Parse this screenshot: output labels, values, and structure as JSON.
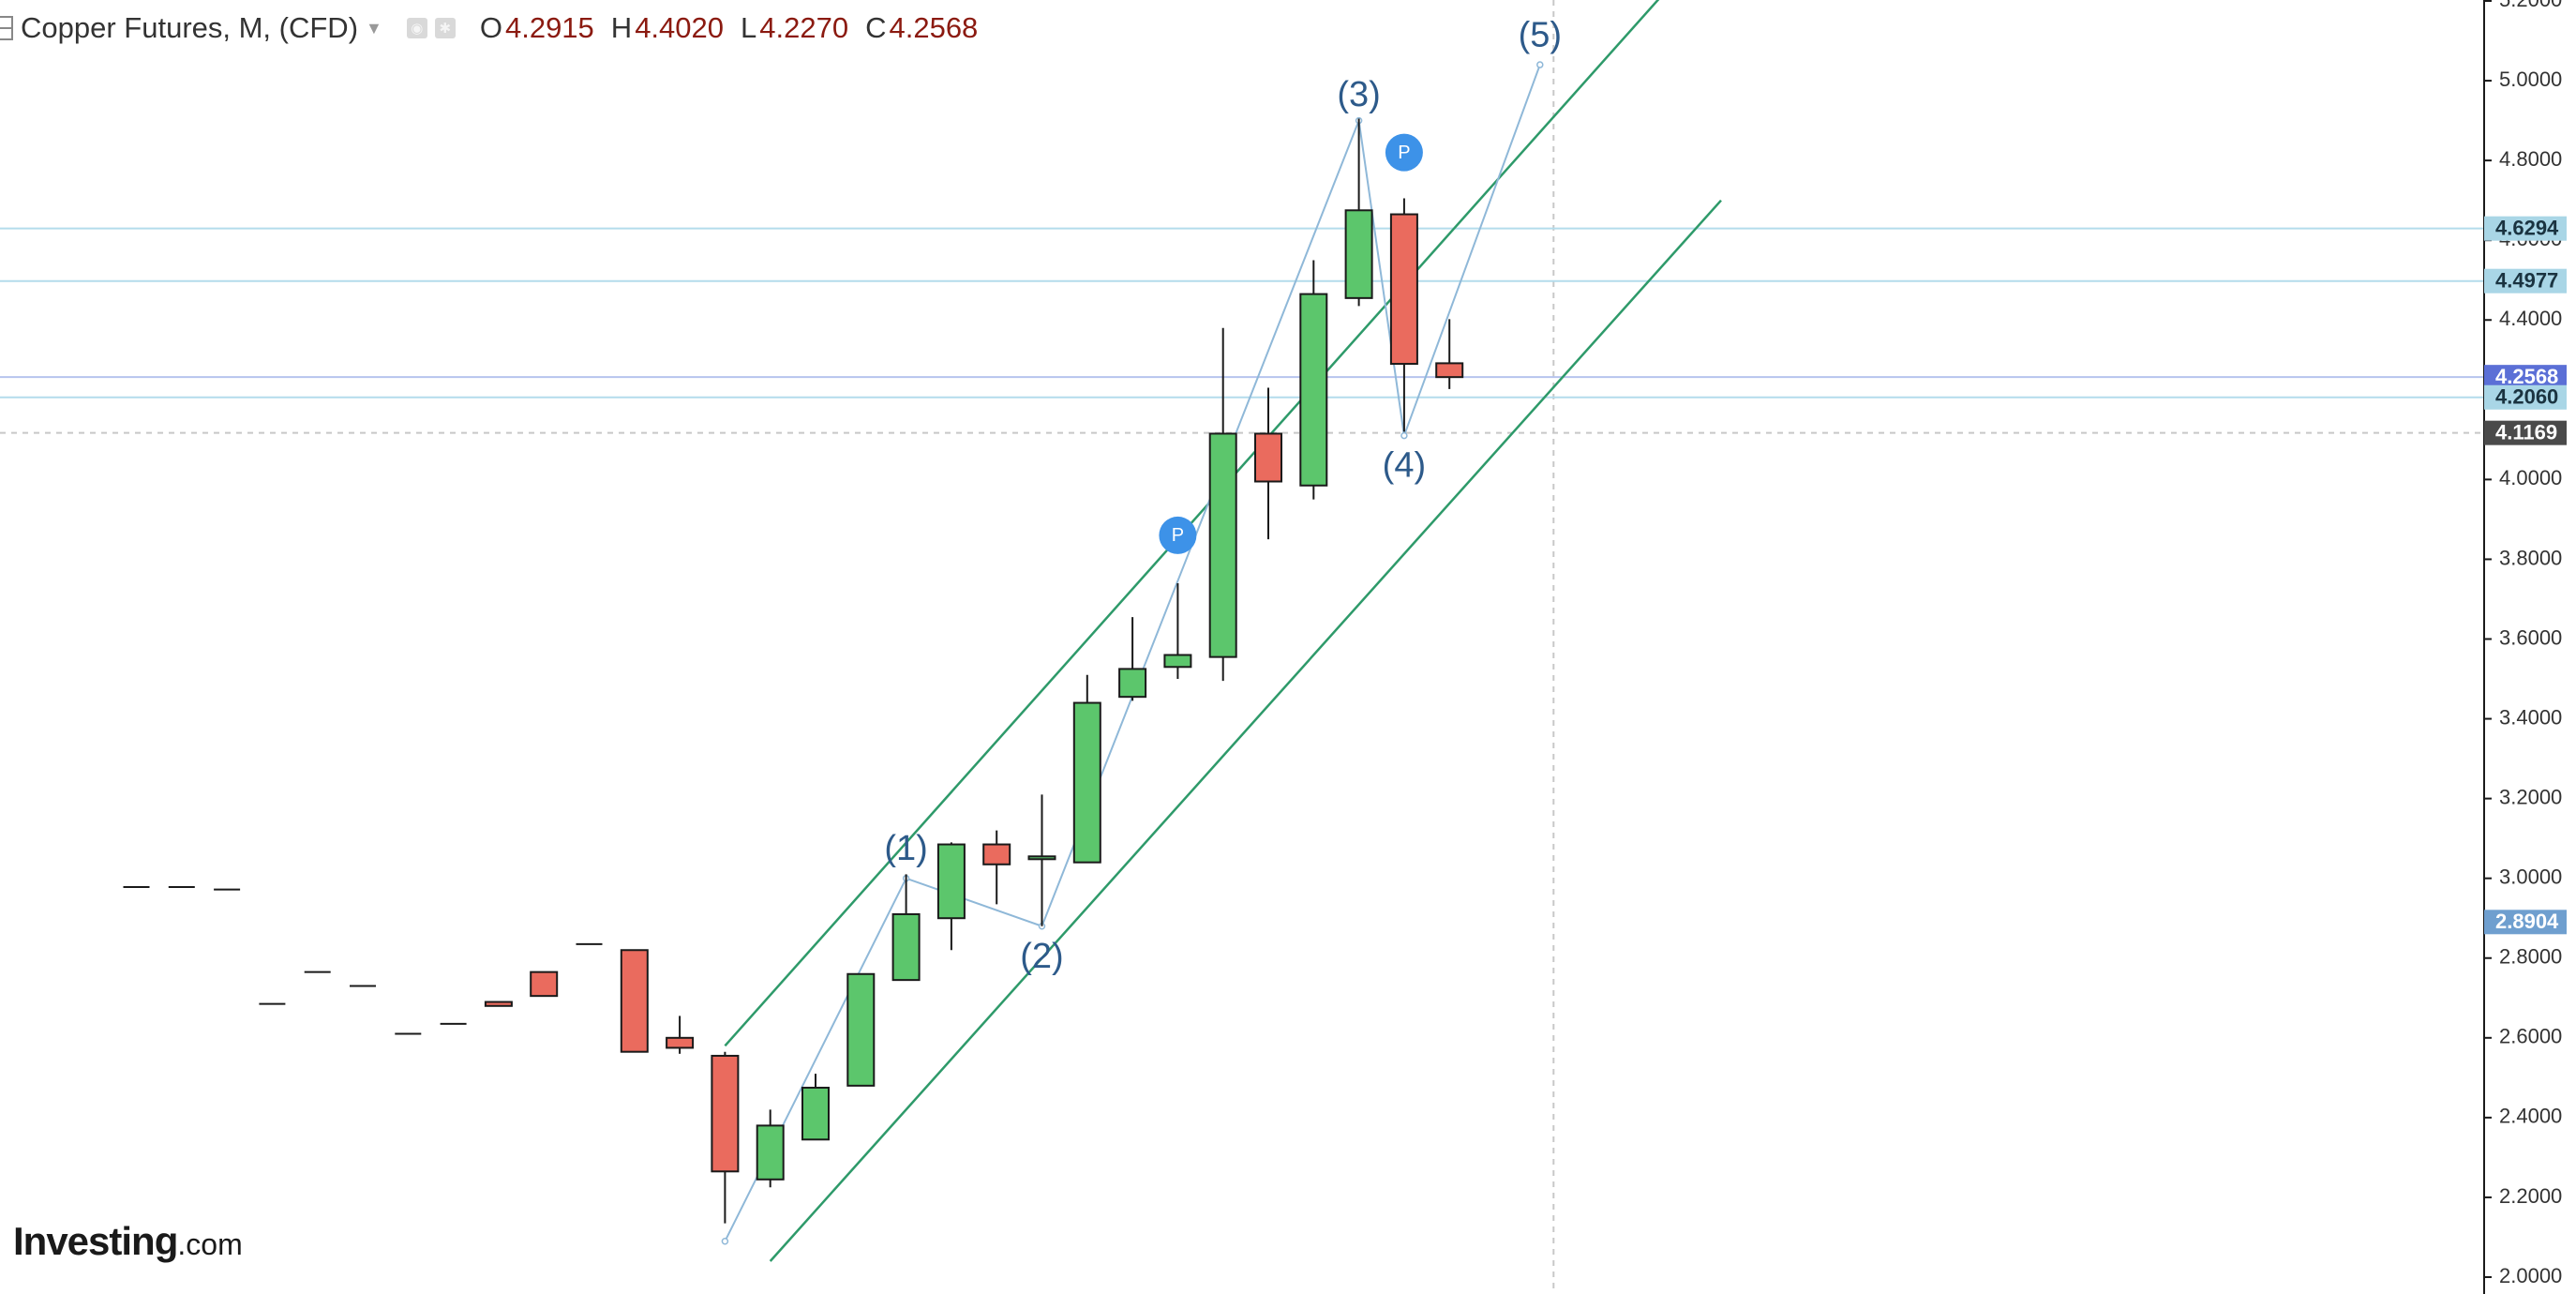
{
  "legend": {
    "symbol": "Copper Futures, M, (CFD)",
    "open_key": "O",
    "open": "4.2915",
    "high_key": "H",
    "high": "4.4020",
    "low_key": "L",
    "low": "4.2270",
    "close_key": "C",
    "close": "4.2568"
  },
  "logo": {
    "main": "Investing",
    "suffix": ".com"
  },
  "colors": {
    "up": "#5cc66c",
    "down": "#ea6b5e",
    "channel": "#2e9a6a",
    "wave_line": "#8fb8d8",
    "hline": "#b4dcec",
    "wave_label": "#2d5a8a",
    "pivot": "#3d92e8"
  },
  "chart_data": {
    "type": "candlestick",
    "title": "Copper Futures, M, (CFD)",
    "timeframe": "M",
    "ylim": [
      2.0,
      5.2
    ],
    "y_ticks": [
      "2.0000",
      "2.2000",
      "2.4000",
      "2.6000",
      "2.8000",
      "3.0000",
      "3.2000",
      "3.4000",
      "3.6000",
      "3.8000",
      "4.0000",
      "4.2000",
      "4.4000",
      "4.6000",
      "4.8000",
      "5.0000",
      "5.2000"
    ],
    "candles": [
      {
        "o": 2.978,
        "h": 2.978,
        "l": 2.978,
        "c": 2.978
      },
      {
        "o": 2.978,
        "h": 2.978,
        "l": 2.978,
        "c": 2.978
      },
      {
        "o": 2.972,
        "h": 2.972,
        "l": 2.972,
        "c": 2.972
      },
      {
        "o": 2.685,
        "h": 2.685,
        "l": 2.685,
        "c": 2.685
      },
      {
        "o": 2.765,
        "h": 2.765,
        "l": 2.765,
        "c": 2.765
      },
      {
        "o": 2.73,
        "h": 2.73,
        "l": 2.73,
        "c": 2.73
      },
      {
        "o": 2.61,
        "h": 2.61,
        "l": 2.61,
        "c": 2.61
      },
      {
        "o": 2.635,
        "h": 2.635,
        "l": 2.635,
        "c": 2.635
      },
      {
        "o": 2.69,
        "h": 2.69,
        "l": 2.68,
        "c": 2.68
      },
      {
        "o": 2.765,
        "h": 2.765,
        "l": 2.705,
        "c": 2.705
      },
      {
        "o": 2.835,
        "h": 2.835,
        "l": 2.835,
        "c": 2.835
      },
      {
        "o": 2.82,
        "h": 2.82,
        "l": 2.565,
        "c": 2.565
      },
      {
        "o": 2.6,
        "h": 2.655,
        "l": 2.56,
        "c": 2.575
      },
      {
        "o": 2.555,
        "h": 2.565,
        "l": 2.135,
        "c": 2.265
      },
      {
        "o": 2.245,
        "h": 2.42,
        "l": 2.225,
        "c": 2.38
      },
      {
        "o": 2.345,
        "h": 2.51,
        "l": 2.345,
        "c": 2.475
      },
      {
        "o": 2.48,
        "h": 2.76,
        "l": 2.48,
        "c": 2.76
      },
      {
        "o": 2.745,
        "h": 3.01,
        "l": 2.745,
        "c": 2.91
      },
      {
        "o": 2.9,
        "h": 3.09,
        "l": 2.82,
        "c": 3.085
      },
      {
        "o": 3.085,
        "h": 3.12,
        "l": 2.935,
        "c": 3.035
      },
      {
        "o": 3.05,
        "h": 3.21,
        "l": 2.88,
        "c": 3.055
      },
      {
        "o": 3.04,
        "h": 3.51,
        "l": 3.04,
        "c": 3.44
      },
      {
        "o": 3.455,
        "h": 3.655,
        "l": 3.445,
        "c": 3.525
      },
      {
        "o": 3.53,
        "h": 3.74,
        "l": 3.5,
        "c": 3.56
      },
      {
        "o": 3.555,
        "h": 4.38,
        "l": 3.495,
        "c": 4.115
      },
      {
        "o": 4.115,
        "h": 4.23,
        "l": 3.85,
        "c": 3.995
      },
      {
        "o": 3.985,
        "h": 4.55,
        "l": 3.95,
        "c": 4.465
      },
      {
        "o": 4.455,
        "h": 4.905,
        "l": 4.435,
        "c": 4.675
      },
      {
        "o": 4.665,
        "h": 4.705,
        "l": 4.12,
        "c": 4.29
      },
      {
        "o": 4.2915,
        "h": 4.402,
        "l": 4.227,
        "c": 4.2568
      }
    ],
    "channel_lines": [
      {
        "label": "upper",
        "from": {
          "candle": 13,
          "y": 2.58
        },
        "to": {
          "candle": 35.0,
          "y": 5.38
        }
      },
      {
        "label": "lower",
        "from": {
          "candle": 14,
          "y": 2.04
        },
        "to": {
          "candle": 35.0,
          "y": 4.7
        }
      }
    ],
    "horizontal_lines": [
      {
        "value": 4.6294,
        "label": "4.6294",
        "line_color": "#b4dcec",
        "tag_color": "#a9d6e6",
        "text_color": "#1a3340",
        "line_style": "solid"
      },
      {
        "value": 4.4977,
        "label": "4.4977",
        "line_color": "#b4dcec",
        "tag_color": "#a9d6e6",
        "text_color": "#1a3340",
        "line_style": "solid"
      },
      {
        "value": 4.2568,
        "label": "4.2568",
        "line_color": "#b7c4ee",
        "tag_color": "#5b6fd6",
        "text_color": "#ffffff",
        "line_style": "solid"
      },
      {
        "value": 4.206,
        "label": "4.2060",
        "line_color": "#b4dcec",
        "tag_color": "#a9d6e6",
        "text_color": "#1a3340",
        "line_style": "solid"
      },
      {
        "value": 4.1169,
        "label": "4.1169",
        "line_color": "#c8c8c8",
        "tag_color": "#4a4a4a",
        "text_color": "#ffffff",
        "line_style": "dashed"
      }
    ],
    "value_tags": [
      {
        "value": 2.8904,
        "label": "2.8904",
        "tag_color": "#6f9fcf",
        "text_color": "#ffffff"
      }
    ],
    "crosshair": {
      "candle": 31.3,
      "y": 4.1169
    },
    "wave_path": [
      {
        "candle": 13,
        "y": 2.09
      },
      {
        "candle": 17,
        "y": 3.0
      },
      {
        "candle": 20,
        "y": 2.88
      },
      {
        "candle": 27,
        "y": 4.9
      },
      {
        "candle": 28,
        "y": 4.11
      },
      {
        "candle": 31,
        "y": 5.04
      }
    ],
    "wave_labels": [
      {
        "text": "(1)",
        "candle": 17,
        "y": 3.07
      },
      {
        "text": "(2)",
        "candle": 20,
        "y": 2.8
      },
      {
        "text": "(3)",
        "candle": 27,
        "y": 4.96
      },
      {
        "text": "(4)",
        "candle": 28,
        "y": 4.03
      },
      {
        "text": "(5)",
        "candle": 31,
        "y": 5.11
      }
    ],
    "pivot_markers": [
      {
        "text": "P",
        "candle": 23,
        "y": 3.86
      },
      {
        "text": "P",
        "candle": 28,
        "y": 4.82
      }
    ]
  }
}
